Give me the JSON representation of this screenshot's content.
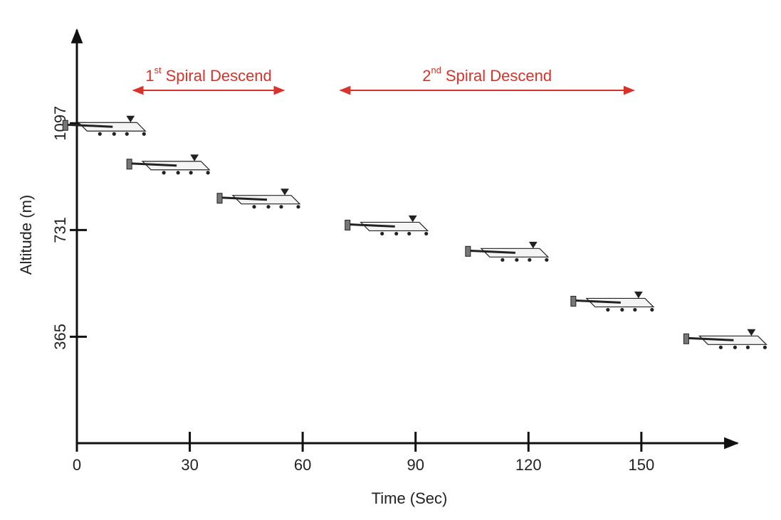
{
  "chart_data": {
    "type": "scatter",
    "x_label": "Time (Sec)",
    "y_label": "Altitude (m)",
    "x": [
      8,
      25,
      49,
      83,
      115,
      143,
      173
    ],
    "values": [
      1085,
      952,
      835,
      743,
      653,
      482,
      353
    ],
    "xlim": [
      0,
      175
    ],
    "ylim": [
      0,
      1410
    ],
    "xticks": [
      0,
      30,
      60,
      90,
      120,
      150
    ],
    "yticks": [
      365,
      731,
      1097
    ],
    "color": "#222222",
    "annotations": [
      {
        "num": "1",
        "sup": "st",
        "text": "Spiral Descend",
        "start": 15,
        "end": 55,
        "color": "#d8322a"
      },
      {
        "num": "2",
        "sup": "nd",
        "text": "Spiral Descend",
        "start": 70,
        "end": 148,
        "color": "#d8322a"
      }
    ]
  }
}
